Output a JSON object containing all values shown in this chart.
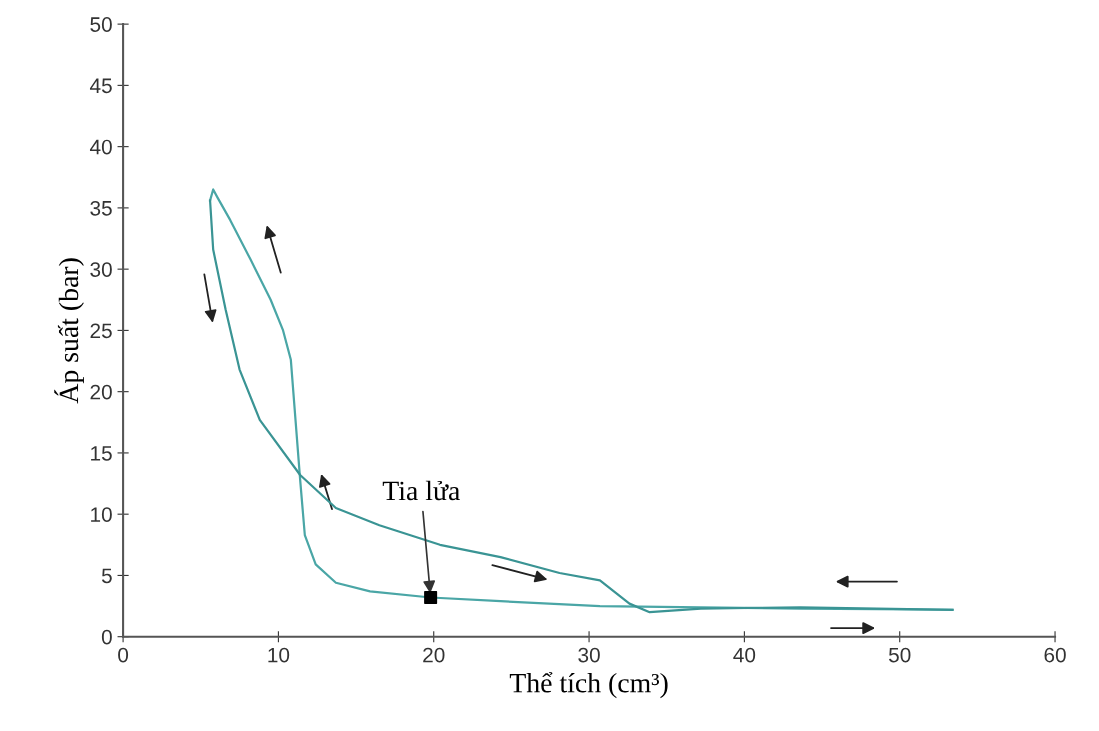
{
  "chart_data": {
    "type": "line",
    "xlabel": "Thể tích (cm³)",
    "ylabel": "Áp suất (bar)",
    "xlim": [
      0,
      60
    ],
    "xticks": [
      0,
      10,
      20,
      30,
      40,
      50,
      60
    ],
    "ylim": [
      0,
      50
    ],
    "yticks": [
      0,
      5,
      10,
      15,
      20,
      25,
      30,
      35,
      40,
      45,
      50
    ],
    "grid": false,
    "marker": "none",
    "line_style": "solid",
    "series": [
      {
        "color": "#4aa6a6",
        "x": [
          53.4,
          43.6,
          37.2,
          30.7,
          24.3,
          19.8,
          15.9,
          13.7,
          12.4,
          11.7,
          11.4,
          11.1,
          10.8,
          10.3,
          9.5,
          8.2,
          6.9,
          6.1,
          5.8,
          5.6
        ],
        "values": [
          2.2,
          2.3,
          2.4,
          2.5,
          2.9,
          3.2,
          3.7,
          4.4,
          5.9,
          8.3,
          12.8,
          17.7,
          22.6,
          25.0,
          27.5,
          30.8,
          34.0,
          35.8,
          36.5,
          35.6
        ]
      },
      {
        "color": "#3a9494",
        "x": [
          5.6,
          5.8,
          6.6,
          7.5,
          8.8,
          11.4,
          13.7,
          16.5,
          20.4,
          24.3,
          28.1,
          30.7,
          31.7,
          32.6,
          33.9,
          37.2,
          43.6,
          53.4
        ],
        "values": [
          35.6,
          31.6,
          26.7,
          21.8,
          17.7,
          13.2,
          10.5,
          9.1,
          7.5,
          6.5,
          5.2,
          4.6,
          3.6,
          2.7,
          2.0,
          2.3,
          2.4,
          2.2
        ]
      },
      {
        "type": "scatter",
        "color": "#000000",
        "marker": "square",
        "x": [
          19.8
        ],
        "values": [
          3.2
        ]
      }
    ],
    "annotations": [
      {
        "text": "Tia lửa",
        "x": 19.8,
        "y": 3.2
      }
    ]
  }
}
